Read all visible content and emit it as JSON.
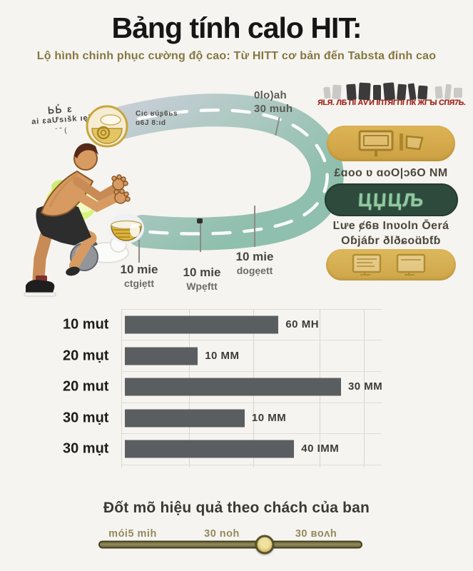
{
  "header": {
    "title": "Bảng tính calo HIT:",
    "subtitle": "Lộ hình chinh phục cường độ cao: Từ HITT cơ bản đến Tabsta đỉnh cao"
  },
  "diagram": {
    "scribble": {
      "line1": "ᏏᏏ̓ ɛ",
      "line2": "ai ɛaƯsıšk ıęi",
      "line3": "ˉ˘("
    },
    "badge": {
      "line1": "Cıc ʁúʂ6ьs",
      "line2": "ɑ6J 8:ıd"
    },
    "duration_tag": {
      "line1": "0lo)ah",
      "line2": "30 muh"
    },
    "milestones": [
      {
        "title": "10 mie",
        "subtitle": "ctgiẹtt"
      },
      {
        "title": "10 mie",
        "subtitle": "Wpẹftt"
      },
      {
        "title": "10 mie",
        "subtitle": "dogẹett"
      }
    ]
  },
  "sidebar": {
    "red_caption": "ЯLЯ. ЛБ ПІ АѴИ ІПТЯГПІ ПК ЖГЪІ СПЯ7Ь.",
    "pill1_caption": "£ɑoo ʋ ɑoO|ɔ6O ΝΜ",
    "pill2_glyphs": "ЦЏЦЉ",
    "pill2_caption_line1": "Ľưe ȼ6ʙ Inʋoln Ōerá",
    "pill2_caption_line2": "Oɓjáɓr ðlðɕoɑ̈ƅƭɓ"
  },
  "chart_data": {
    "type": "bar",
    "orientation": "horizontal",
    "categories": [
      "10 mut",
      "20 mụt",
      "20 mut",
      "30 mụt",
      "30 mụt"
    ],
    "values": [
      60,
      10,
      30,
      10,
      40
    ],
    "value_labels": [
      "60 MH",
      "10 MM",
      "30 MM",
      "10 MM",
      "40 IMM"
    ],
    "bar_widths_pct": [
      59,
      28,
      83,
      46,
      65
    ],
    "bar_color": "#5b5e61",
    "grid": true,
    "xlabel": "",
    "ylabel": ""
  },
  "footer": {
    "heading": "Đốt mõ hiệu quả theo chách của ban",
    "slider_labels": [
      "mói5 mih",
      "30 noh",
      "30 ʙoʌh"
    ],
    "slider_value_pct": 63
  },
  "colors": {
    "accent_gold": "#d4ab4a",
    "accent_green": "#2e4a3c",
    "bar": "#5b5e61",
    "red_text": "#a8281e",
    "subtitle_olive": "#857741",
    "road_start": "#c9cfd9",
    "road_end": "#8fbfae"
  }
}
